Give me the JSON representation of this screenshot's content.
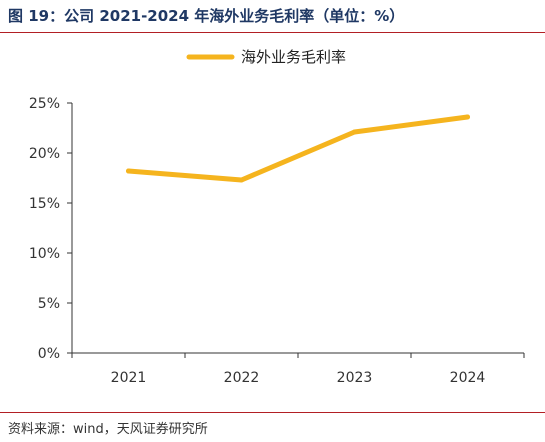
{
  "figure": {
    "title": "图 19：公司 2021-2024 年海外业务毛利率（单位：%）",
    "source": "资料来源：wind，天风证券研究所"
  },
  "colors": {
    "series": "#f5b41e",
    "axis": "#333333",
    "rule": "#b21f24",
    "title": "#1f3864"
  },
  "chart_data": {
    "type": "line",
    "title": "",
    "xlabel": "",
    "ylabel": "",
    "categories": [
      "2021",
      "2022",
      "2023",
      "2024"
    ],
    "series": [
      {
        "name": "海外业务毛利率",
        "values": [
          18.2,
          17.3,
          22.1,
          23.6
        ]
      }
    ],
    "ylim": [
      0,
      25
    ],
    "yticks": [
      0,
      5,
      10,
      15,
      20,
      25
    ],
    "ytick_labels": [
      "0%",
      "5%",
      "10%",
      "15%",
      "20%",
      "25%"
    ],
    "unit": "%",
    "grid": false,
    "legend": "top-center"
  }
}
